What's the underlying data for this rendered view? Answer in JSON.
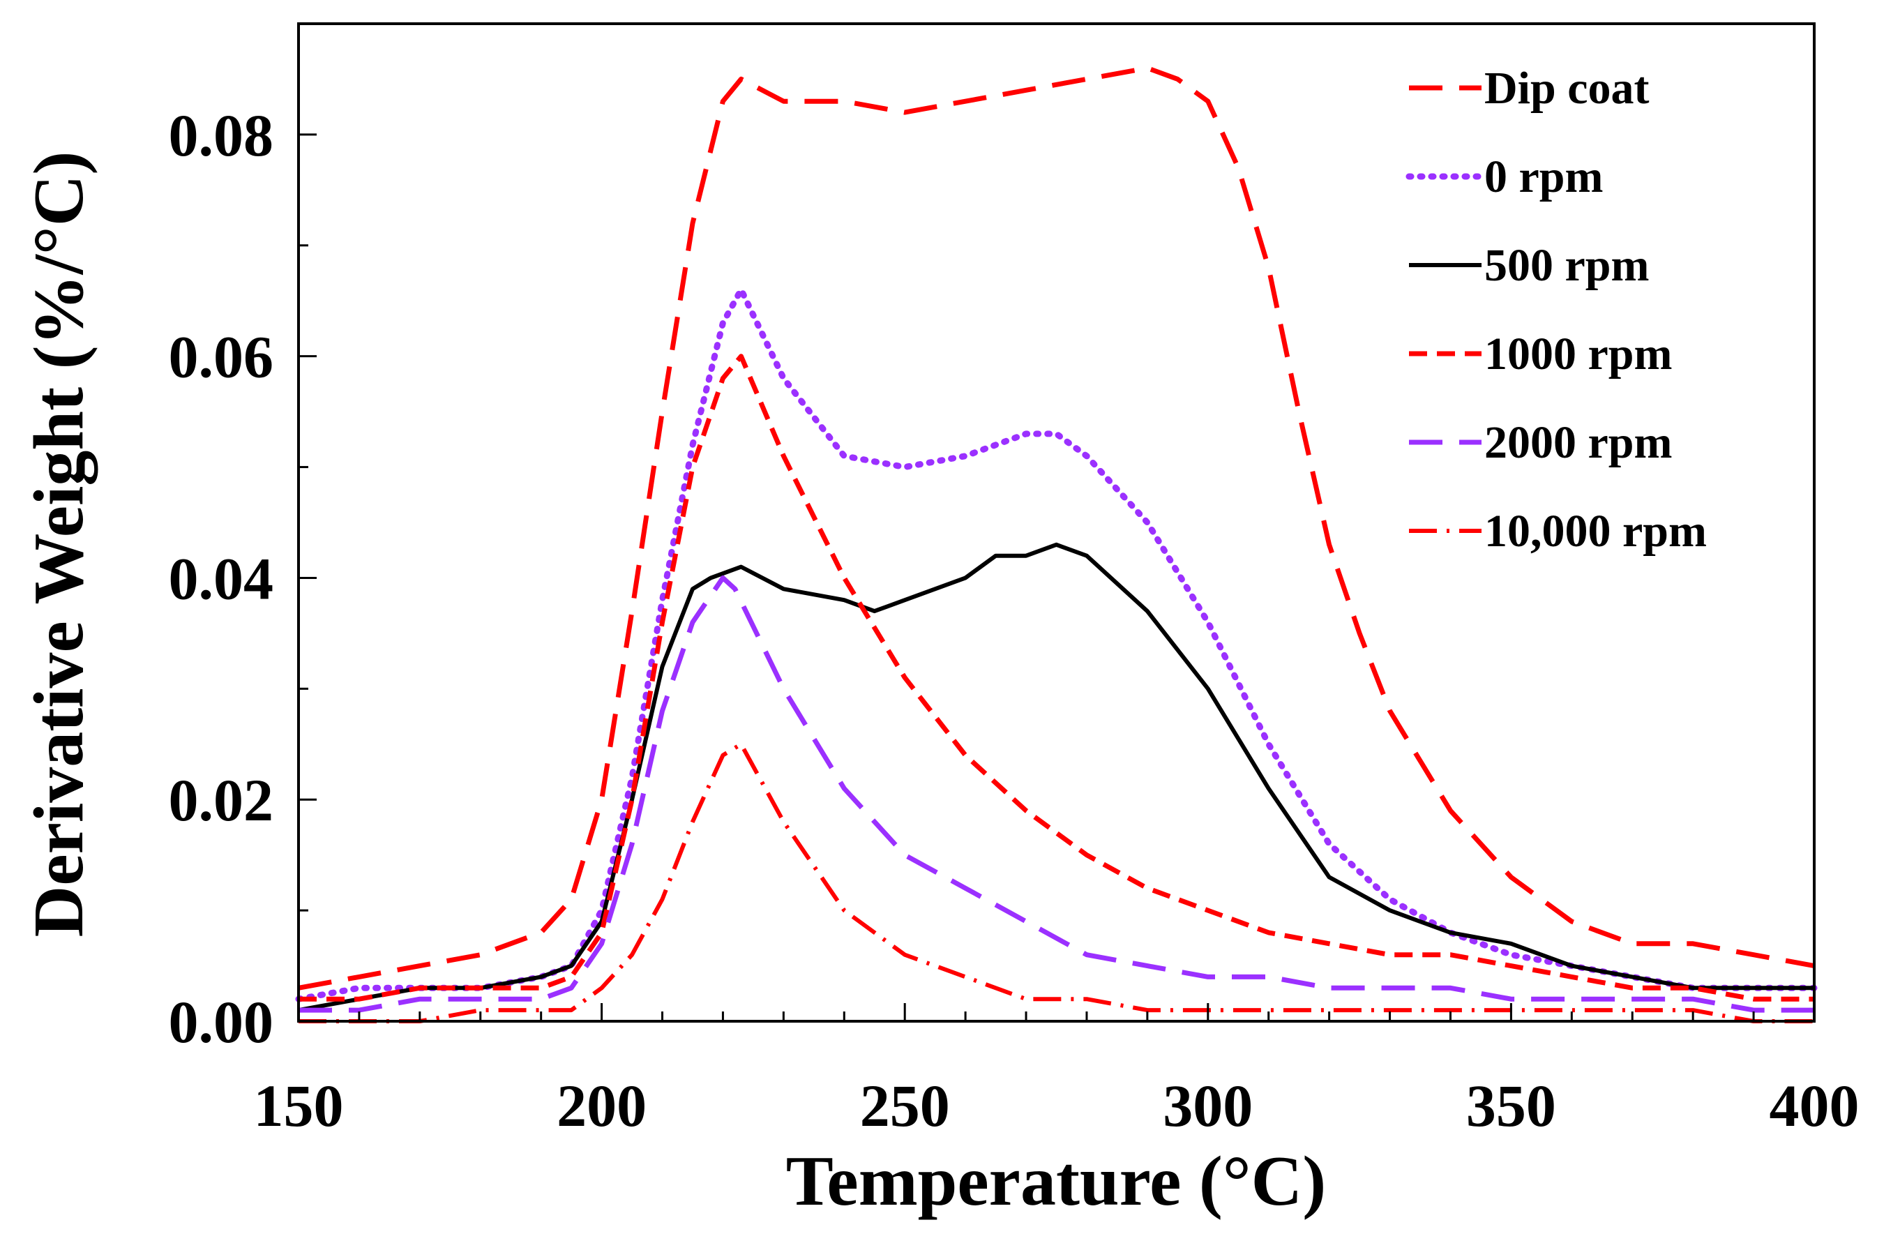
{
  "chart_data": {
    "type": "line",
    "title": "",
    "xlabel": "Temperature (°C)",
    "ylabel": "Derivative Weight (%/°C)",
    "xlim": [
      150,
      400
    ],
    "ylim": [
      0.0,
      0.09
    ],
    "xticks": [
      150,
      200,
      250,
      300,
      350,
      400
    ],
    "xtick_labels": [
      "150",
      "200",
      "250",
      "300",
      "350",
      "400"
    ],
    "yticks": [
      0.0,
      0.02,
      0.04,
      0.06,
      0.08
    ],
    "ytick_labels": [
      "0.00",
      "0.02",
      "0.04",
      "0.06",
      "0.08"
    ],
    "grid": false,
    "legend_position": "top-right",
    "series": [
      {
        "name": "Dip coat",
        "color": "#ff0000",
        "dash": "long-dash",
        "x": [
          150,
          160,
          170,
          180,
          190,
          195,
          200,
          205,
          210,
          215,
          220,
          223,
          230,
          240,
          250,
          260,
          270,
          280,
          290,
          295,
          300,
          305,
          310,
          315,
          320,
          325,
          330,
          340,
          350,
          360,
          370,
          380,
          390,
          400
        ],
        "y": [
          0.003,
          0.004,
          0.005,
          0.006,
          0.008,
          0.011,
          0.02,
          0.037,
          0.055,
          0.072,
          0.083,
          0.085,
          0.083,
          0.083,
          0.082,
          0.083,
          0.084,
          0.085,
          0.086,
          0.085,
          0.083,
          0.077,
          0.068,
          0.055,
          0.043,
          0.035,
          0.028,
          0.019,
          0.013,
          0.009,
          0.007,
          0.007,
          0.006,
          0.005
        ]
      },
      {
        "name": "0 rpm",
        "color": "#9b30ff",
        "dash": "dotted",
        "x": [
          150,
          160,
          170,
          180,
          190,
          195,
          200,
          205,
          210,
          215,
          220,
          223,
          230,
          240,
          250,
          260,
          270,
          275,
          280,
          290,
          300,
          310,
          320,
          330,
          340,
          350,
          360,
          370,
          380,
          390,
          400
        ],
        "y": [
          0.002,
          0.003,
          0.003,
          0.003,
          0.004,
          0.005,
          0.01,
          0.022,
          0.038,
          0.052,
          0.063,
          0.066,
          0.058,
          0.051,
          0.05,
          0.051,
          0.053,
          0.053,
          0.051,
          0.045,
          0.036,
          0.025,
          0.016,
          0.011,
          0.008,
          0.006,
          0.005,
          0.004,
          0.003,
          0.003,
          0.003
        ]
      },
      {
        "name": "500 rpm",
        "color": "#000000",
        "dash": "solid",
        "x": [
          150,
          160,
          170,
          180,
          190,
          195,
          200,
          205,
          210,
          215,
          218,
          223,
          230,
          240,
          245,
          250,
          260,
          265,
          270,
          275,
          280,
          290,
          300,
          310,
          320,
          330,
          340,
          350,
          360,
          370,
          380,
          390,
          400
        ],
        "y": [
          0.001,
          0.002,
          0.003,
          0.003,
          0.004,
          0.005,
          0.009,
          0.02,
          0.032,
          0.039,
          0.04,
          0.041,
          0.039,
          0.038,
          0.037,
          0.038,
          0.04,
          0.042,
          0.042,
          0.043,
          0.042,
          0.037,
          0.03,
          0.021,
          0.013,
          0.01,
          0.008,
          0.007,
          0.005,
          0.004,
          0.003,
          0.003,
          0.003
        ]
      },
      {
        "name": "1000 rpm",
        "color": "#ff0000",
        "dash": "short-dash",
        "x": [
          150,
          160,
          170,
          180,
          190,
          195,
          200,
          205,
          210,
          215,
          220,
          223,
          230,
          240,
          250,
          260,
          270,
          280,
          290,
          300,
          310,
          320,
          330,
          340,
          350,
          360,
          370,
          380,
          390,
          400
        ],
        "y": [
          0.002,
          0.002,
          0.003,
          0.003,
          0.003,
          0.004,
          0.008,
          0.02,
          0.036,
          0.05,
          0.058,
          0.06,
          0.051,
          0.04,
          0.031,
          0.024,
          0.019,
          0.015,
          0.012,
          0.01,
          0.008,
          0.007,
          0.006,
          0.006,
          0.005,
          0.004,
          0.003,
          0.003,
          0.002,
          0.002
        ]
      },
      {
        "name": "2000 rpm",
        "color": "#9b30ff",
        "dash": "long-dash",
        "x": [
          150,
          160,
          170,
          180,
          190,
          195,
          200,
          205,
          210,
          215,
          220,
          222,
          230,
          240,
          250,
          260,
          270,
          280,
          290,
          300,
          310,
          320,
          330,
          340,
          350,
          360,
          370,
          380,
          390,
          400
        ],
        "y": [
          0.001,
          0.001,
          0.002,
          0.002,
          0.002,
          0.003,
          0.007,
          0.016,
          0.028,
          0.036,
          0.04,
          0.039,
          0.03,
          0.021,
          0.015,
          0.012,
          0.009,
          0.006,
          0.005,
          0.004,
          0.004,
          0.003,
          0.003,
          0.003,
          0.002,
          0.002,
          0.002,
          0.002,
          0.001,
          0.001
        ]
      },
      {
        "name": "10,000 rpm",
        "color": "#ff0000",
        "dash": "dash-dot",
        "x": [
          150,
          160,
          170,
          180,
          190,
          195,
          200,
          205,
          210,
          215,
          220,
          223,
          230,
          240,
          250,
          260,
          270,
          280,
          290,
          300,
          310,
          320,
          330,
          340,
          350,
          360,
          370,
          380,
          390,
          400
        ],
        "y": [
          0.0,
          0.0,
          0.0,
          0.001,
          0.001,
          0.001,
          0.003,
          0.006,
          0.011,
          0.018,
          0.024,
          0.025,
          0.018,
          0.01,
          0.006,
          0.004,
          0.002,
          0.002,
          0.001,
          0.001,
          0.001,
          0.001,
          0.001,
          0.001,
          0.001,
          0.001,
          0.001,
          0.001,
          0.0,
          0.0
        ]
      }
    ]
  }
}
